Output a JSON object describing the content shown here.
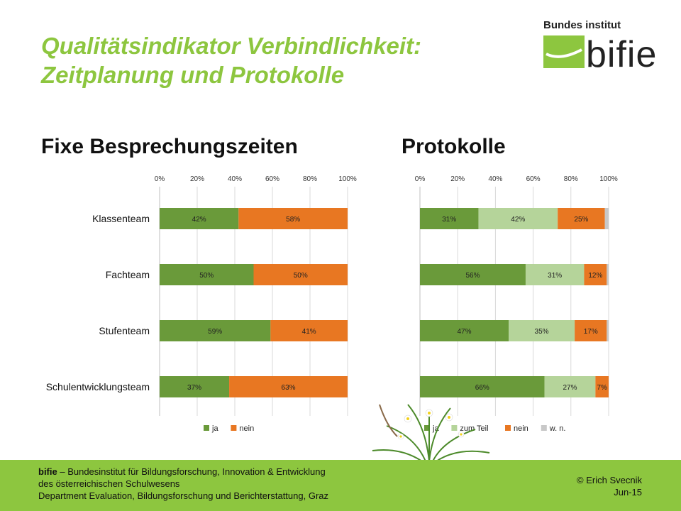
{
  "slide": {
    "title_line1": "Qualitätsindikator Verbindlichkeit:",
    "title_line2": "Zeitplanung und Protokolle"
  },
  "logo": {
    "top_text": "Bundes institut",
    "word": "bifie",
    "green": "#8dc63f"
  },
  "colors": {
    "ja": "#6a9a3a",
    "zum_teil": "#b5d49a",
    "nein": "#e87722",
    "wn": "#c8c8c8",
    "title_green": "#8dc63f"
  },
  "chart_data": [
    {
      "type": "bar",
      "orientation": "horizontal",
      "stacked": true,
      "title": "Fixe Besprechungszeiten",
      "categories": [
        "Klassenteam",
        "Fachteam",
        "Stufenteam",
        "Schulentwicklungsteam"
      ],
      "series": [
        {
          "name": "ja",
          "values": [
            42,
            50,
            59,
            37
          ],
          "labels": [
            "42%",
            "50%",
            "59%",
            "37%"
          ]
        },
        {
          "name": "nein",
          "values": [
            58,
            50,
            41,
            63
          ],
          "labels": [
            "58%",
            "50%",
            "41%",
            "63%"
          ]
        }
      ],
      "xticks": [
        "0%",
        "20%",
        "40%",
        "60%",
        "80%",
        "100%"
      ],
      "xlim": [
        0,
        100
      ],
      "legend_position": "bottom",
      "grid": true
    },
    {
      "type": "bar",
      "orientation": "horizontal",
      "stacked": true,
      "title": "Protokolle",
      "categories": [
        "Klassenteam",
        "Fachteam",
        "Stufenteam",
        "Schulentwicklungsteam"
      ],
      "series": [
        {
          "name": "ja",
          "values": [
            31,
            56,
            47,
            66
          ],
          "labels": [
            "31%",
            "56%",
            "47%",
            "66%"
          ]
        },
        {
          "name": "zum Teil",
          "values": [
            42,
            31,
            35,
            27
          ],
          "labels": [
            "42%",
            "31%",
            "35%",
            "27%"
          ]
        },
        {
          "name": "nein",
          "values": [
            25,
            12,
            17,
            7
          ],
          "labels": [
            "25%",
            "12%",
            "17%",
            "7%"
          ]
        },
        {
          "name": "w. n.",
          "values": [
            2,
            1,
            1,
            0
          ],
          "labels": [
            "",
            "",
            "",
            ""
          ]
        }
      ],
      "xticks": [
        "0%",
        "20%",
        "40%",
        "60%",
        "80%",
        "100%"
      ],
      "xlim": [
        0,
        100
      ],
      "legend_position": "bottom",
      "grid": true
    }
  ],
  "footer": {
    "org_short": "bifie",
    "org_rest": " – Bundesinstitut für Bildungsforschung, Innovation & Entwicklung",
    "line2": "des österreichischen Schulwesens",
    "line3": "Department Evaluation, Bildungsforschung und Berichterstattung, Graz",
    "author": "© Erich Svecnik",
    "date": "Jun-15"
  }
}
